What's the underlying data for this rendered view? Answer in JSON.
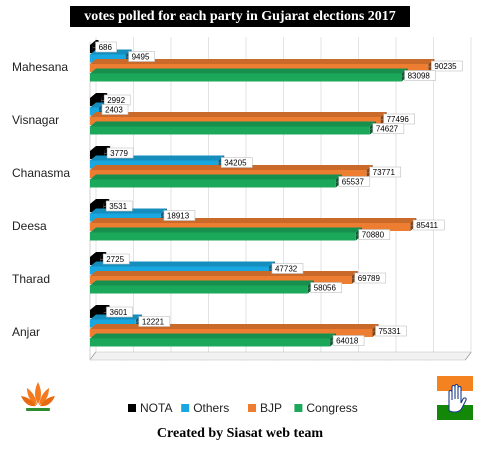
{
  "title": "votes polled for each party in Gujarat elections 2017",
  "footer": "Created by Siasat web team",
  "chart_data": {
    "type": "bar",
    "orientation": "horizontal",
    "title": "votes polled for each party in Gujarat elections 2017",
    "categories": [
      "Mahesana",
      "Visnagar",
      "Chanasma",
      "Deesa",
      "Tharad",
      "Anjar"
    ],
    "series": [
      {
        "name": "NOTA",
        "color": "#000000",
        "values": [
          686,
          2992,
          3779,
          3531,
          2725,
          3601
        ]
      },
      {
        "name": "Others",
        "color": "#19A7E0",
        "values": [
          9495,
          2403,
          34205,
          18913,
          47732,
          12221
        ]
      },
      {
        "name": "BJP",
        "color": "#ED7D31",
        "values": [
          90235,
          77496,
          73771,
          85411,
          69789,
          75331
        ]
      },
      {
        "name": "Congress",
        "color": "#1BA85A",
        "values": [
          83098,
          74627,
          65537,
          70880,
          58056,
          64018
        ]
      }
    ],
    "xlim": [
      0,
      100000
    ],
    "legend": "bottom",
    "grid": true
  },
  "logos": {
    "bjp": "lotus-icon",
    "congress": "hand-icon"
  }
}
